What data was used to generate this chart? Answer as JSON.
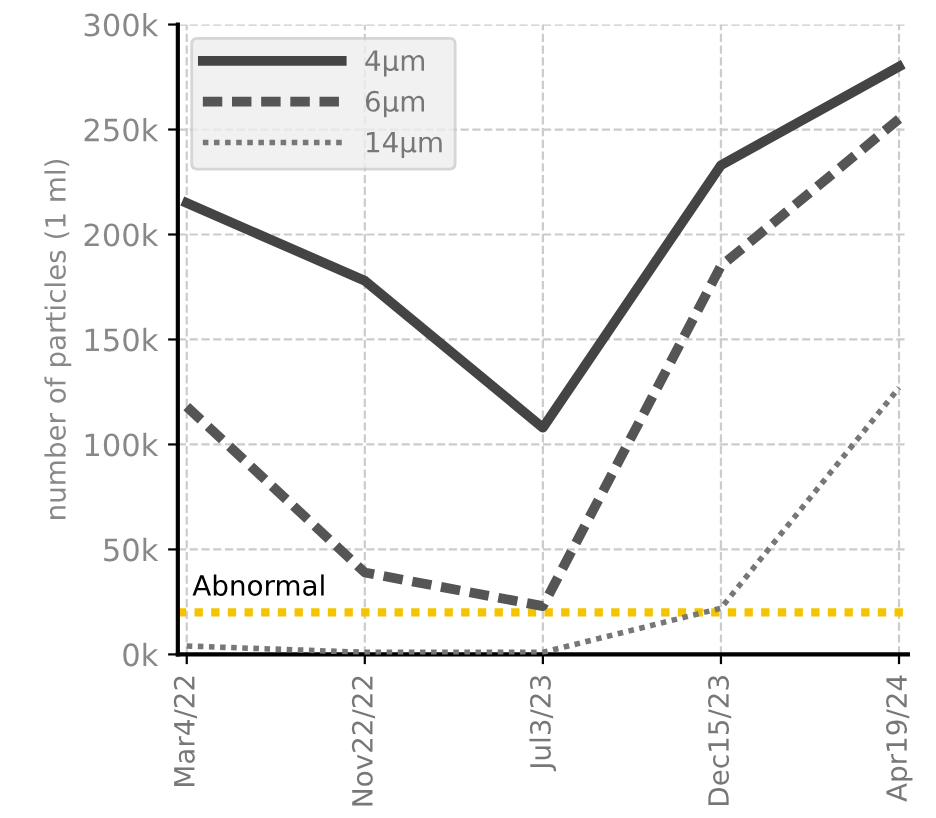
{
  "chart_data": {
    "type": "line",
    "ylabel": "number of particles (1 ml)",
    "categories": [
      "Mar4/22",
      "Nov22/22",
      "Jul3/23",
      "Dec15/23",
      "Apr19/24"
    ],
    "series": [
      {
        "name": "4μm",
        "color": "#444444",
        "line_style": "solid",
        "values": [
          215000,
          178000,
          108000,
          233000,
          280000
        ]
      },
      {
        "name": "6μm",
        "color": "#555555",
        "line_style": "dashed",
        "values": [
          118000,
          39000,
          23000,
          185000,
          255000
        ]
      },
      {
        "name": "14μm",
        "color": "#777777",
        "line_style": "dotted",
        "values": [
          4000,
          1000,
          1000,
          22000,
          127000
        ]
      }
    ],
    "ylim": [
      0,
      300000
    ],
    "yticks": [
      {
        "value": 0,
        "label": "0k"
      },
      {
        "value": 50000,
        "label": "50k"
      },
      {
        "value": 100000,
        "label": "100k"
      },
      {
        "value": 150000,
        "label": "150k"
      },
      {
        "value": 200000,
        "label": "200k"
      },
      {
        "value": 250000,
        "label": "250k"
      },
      {
        "value": 300000,
        "label": "300k"
      }
    ],
    "ref_lines": [
      {
        "axis": "y",
        "value": 20000,
        "label": "Abnormal",
        "color": "#f5c400",
        "line_style": "dotted"
      }
    ],
    "grid": true,
    "legend": "top left",
    "marker": "none"
  }
}
